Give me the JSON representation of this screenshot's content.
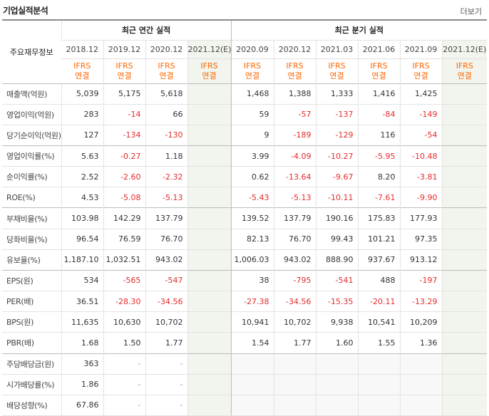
{
  "title": "기업실적분석",
  "more_label": "더보기",
  "label_header": "주요재무정보",
  "group_annual": "최근 연간 실적",
  "group_quarter": "최근 분기 실적",
  "periods": [
    "2018.12",
    "2019.12",
    "2020.12",
    "2021.12(E)",
    "2020.09",
    "2020.12",
    "2021.03",
    "2021.06",
    "2021.09",
    "2021.12(E)"
  ],
  "basis": [
    "IFRS",
    "IFRS",
    "IFRS",
    "IFRS",
    "IFRS",
    "IFRS",
    "IFRS",
    "IFRS",
    "IFRS",
    "IFRS"
  ],
  "consol": [
    "연결",
    "연결",
    "연결",
    "연결",
    "연결",
    "연결",
    "연결",
    "연결",
    "연결",
    "연결"
  ],
  "rows": [
    {
      "label": "매출액(억원)",
      "values": [
        "5,039",
        "5,175",
        "5,618",
        "",
        "1,468",
        "1,388",
        "1,333",
        "1,416",
        "1,425",
        ""
      ]
    },
    {
      "label": "영업이익(억원)",
      "values": [
        "283",
        "-14",
        "66",
        "",
        "59",
        "-57",
        "-137",
        "-84",
        "-149",
        ""
      ]
    },
    {
      "label": "당기순이익(억원)",
      "values": [
        "127",
        "-134",
        "-130",
        "",
        "9",
        "-189",
        "-129",
        "116",
        "-54",
        ""
      ]
    },
    {
      "label": "영업이익률(%)",
      "values": [
        "5.63",
        "-0.27",
        "1.18",
        "",
        "3.99",
        "-4.09",
        "-10.27",
        "-5.95",
        "-10.48",
        ""
      ]
    },
    {
      "label": "순이익률(%)",
      "values": [
        "2.52",
        "-2.60",
        "-2.32",
        "",
        "0.62",
        "-13.64",
        "-9.67",
        "8.20",
        "-3.81",
        ""
      ]
    },
    {
      "label": "ROE(%)",
      "values": [
        "4.53",
        "-5.08",
        "-5.13",
        "",
        "-5.43",
        "-5.13",
        "-10.11",
        "-7.61",
        "-9.90",
        ""
      ]
    },
    {
      "label": "부채비율(%)",
      "values": [
        "103.98",
        "142.29",
        "137.79",
        "",
        "139.52",
        "137.79",
        "190.16",
        "175.83",
        "177.93",
        ""
      ]
    },
    {
      "label": "당좌비율(%)",
      "values": [
        "96.54",
        "76.59",
        "76.70",
        "",
        "82.13",
        "76.70",
        "99.43",
        "101.21",
        "97.35",
        ""
      ]
    },
    {
      "label": "유보율(%)",
      "values": [
        "1,187.10",
        "1,032.51",
        "943.02",
        "",
        "1,006.03",
        "943.02",
        "888.90",
        "937.67",
        "913.12",
        ""
      ]
    },
    {
      "label": "EPS(원)",
      "values": [
        "534",
        "-565",
        "-547",
        "",
        "38",
        "-795",
        "-541",
        "488",
        "-197",
        ""
      ]
    },
    {
      "label": "PER(배)",
      "values": [
        "36.51",
        "-28.30",
        "-34.56",
        "",
        "-27.38",
        "-34.56",
        "-15.35",
        "-20.11",
        "-13.29",
        ""
      ]
    },
    {
      "label": "BPS(원)",
      "values": [
        "11,635",
        "10,630",
        "10,702",
        "",
        "10,941",
        "10,702",
        "9,938",
        "10,541",
        "10,209",
        ""
      ]
    },
    {
      "label": "PBR(배)",
      "values": [
        "1.68",
        "1.50",
        "1.77",
        "",
        "1.54",
        "1.77",
        "1.60",
        "1.55",
        "1.36",
        ""
      ]
    },
    {
      "label": "주당배당금(원)",
      "values": [
        "363",
        "-",
        "-",
        "",
        "",
        "",
        "",
        "",
        "",
        ""
      ]
    },
    {
      "label": "시가배당률(%)",
      "values": [
        "1.86",
        "-",
        "-",
        "",
        "",
        "",
        "",
        "",
        "",
        ""
      ]
    },
    {
      "label": "배당성향(%)",
      "values": [
        "67.86",
        "-",
        "-",
        "",
        "",
        "",
        "",
        "",
        "",
        ""
      ]
    }
  ]
}
